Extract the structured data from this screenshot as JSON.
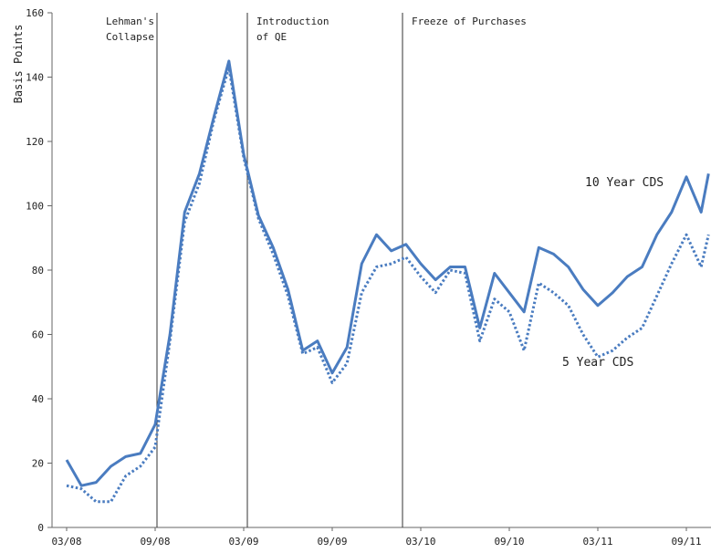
{
  "chart_data": {
    "type": "line",
    "title": "",
    "xlabel": "",
    "ylabel": "Basis Points",
    "ylim": [
      0,
      160
    ],
    "yticks": [
      0,
      20,
      40,
      60,
      80,
      100,
      120,
      140,
      160
    ],
    "xlim": [
      0,
      43.5
    ],
    "xticks": [
      {
        "x": 0,
        "label": "03/08"
      },
      {
        "x": 6,
        "label": "09/08"
      },
      {
        "x": 12,
        "label": "03/09"
      },
      {
        "x": 18,
        "label": "09/09"
      },
      {
        "x": 24,
        "label": "03/10"
      },
      {
        "x": 30,
        "label": "09/10"
      },
      {
        "x": 36,
        "label": "03/11"
      },
      {
        "x": 42,
        "label": "09/11"
      }
    ],
    "grid": false,
    "events": [
      {
        "x": 6,
        "label": [
          "Lehman's",
          "Collapse"
        ]
      },
      {
        "x": 12,
        "label": [
          "Introduction",
          "of QE"
        ]
      },
      {
        "x": 22,
        "label": [
          "Freeze of Purchases"
        ]
      }
    ],
    "series": [
      {
        "name": "10 Year CDS",
        "style": "solid",
        "color": "#4a7cc0",
        "x": [
          0,
          1,
          2,
          3,
          4,
          5,
          6,
          7,
          8,
          9,
          10,
          11,
          12,
          13,
          14,
          15,
          16,
          17,
          18,
          19,
          20,
          21,
          22,
          23,
          24,
          25,
          26,
          27,
          28,
          29,
          30,
          31,
          32,
          33,
          34,
          35,
          36,
          37,
          38,
          39,
          40,
          41,
          42,
          43,
          43.5
        ],
        "values": [
          21,
          13,
          14,
          19,
          22,
          23,
          32,
          60,
          98,
          110,
          128,
          145,
          116,
          97,
          87,
          74,
          55,
          58,
          48,
          56,
          82,
          91,
          86,
          88,
          82,
          77,
          81,
          81,
          62,
          79,
          73,
          67,
          87,
          85,
          81,
          74,
          69,
          73,
          78,
          81,
          91,
          98,
          109,
          98,
          110
        ]
      },
      {
        "name": "5 Year CDS",
        "style": "dotted",
        "color": "#4a7cc0",
        "x": [
          0,
          1,
          2,
          3,
          4,
          5,
          6,
          7,
          8,
          9,
          10,
          11,
          12,
          13,
          14,
          15,
          16,
          17,
          18,
          19,
          20,
          21,
          22,
          23,
          24,
          25,
          26,
          27,
          28,
          29,
          30,
          31,
          32,
          33,
          34,
          35,
          36,
          37,
          38,
          39,
          40,
          41,
          42,
          43,
          43.5
        ],
        "values": [
          13,
          12,
          8,
          8,
          16,
          19,
          25,
          58,
          95,
          107,
          127,
          143,
          115,
          96,
          85,
          72,
          54,
          56,
          45,
          51,
          73,
          81,
          82,
          84,
          78,
          73,
          80,
          79,
          58,
          71,
          67,
          55,
          76,
          73,
          69,
          60,
          53,
          55,
          59,
          62,
          72,
          82,
          91,
          81,
          91
        ]
      }
    ]
  }
}
